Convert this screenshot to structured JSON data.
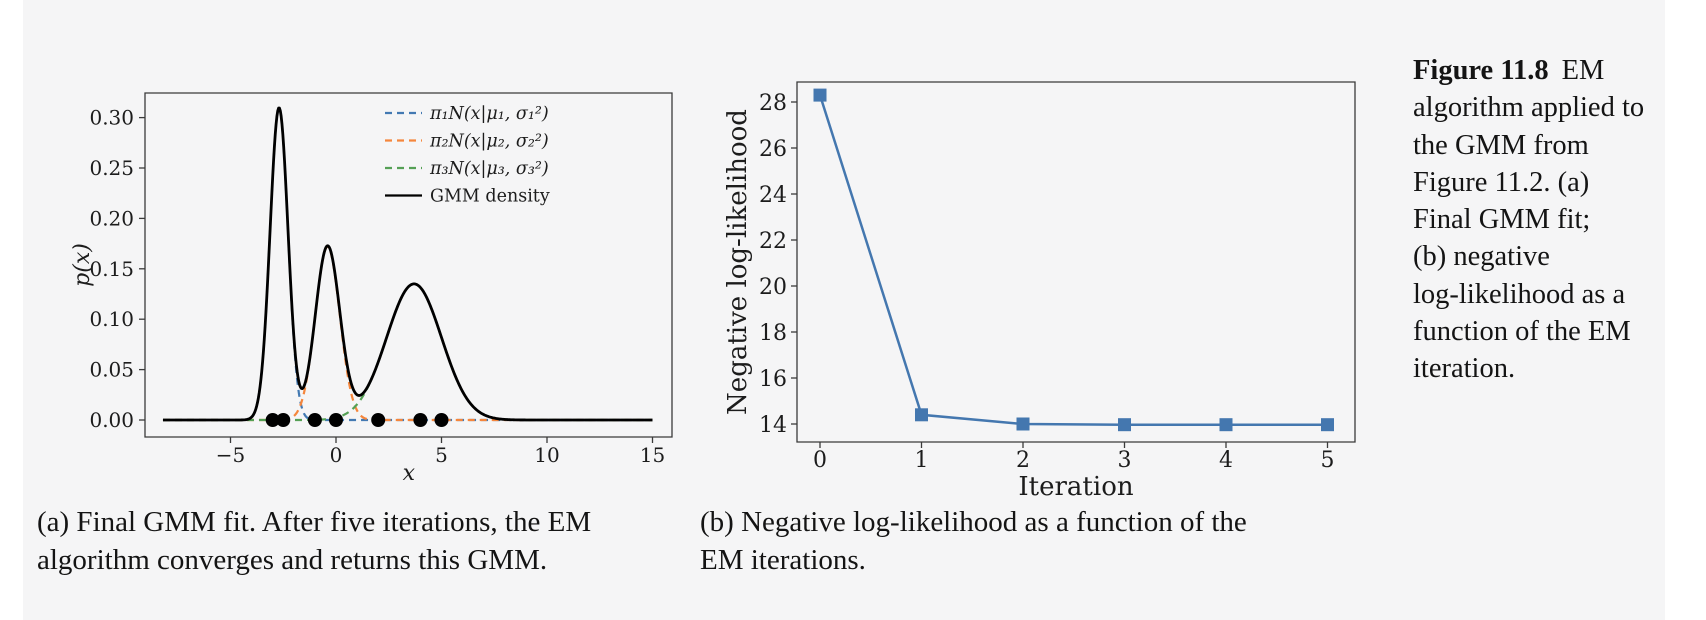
{
  "page": {
    "background": "#f5f5f6"
  },
  "figure_caption": {
    "label": "Figure 11.8",
    "line1_rest": "EM",
    "lines": [
      "algorithm applied to",
      "the GMM from",
      "Figure 11.2. (a)",
      "Final GMM fit;",
      "(b) negative",
      "log-likelihood as a",
      "function of the EM",
      "iteration."
    ]
  },
  "subcaptions": {
    "a": [
      "(a) Final GMM fit. After five iterations, the EM",
      "algorithm converges and returns this GMM."
    ],
    "b": [
      "(b) Negative log-likelihood as a function of the",
      "EM iterations."
    ]
  },
  "chart_data": [
    {
      "id": "gmm-fit",
      "type": "line",
      "title": "",
      "xlabel": "x",
      "ylabel": "p(x)",
      "xlim": [
        -9.05,
        15.93
      ],
      "ylim": [
        -0.017,
        0.3244
      ],
      "xticks": [
        -5,
        0,
        5,
        10,
        15
      ],
      "yticks": [
        0.0,
        0.05,
        0.1,
        0.15,
        0.2,
        0.25,
        0.3
      ],
      "grid": false,
      "legend_position": "upper right",
      "curve_x_range": [
        -8.2,
        15.0
      ],
      "components": [
        {
          "label": "π₁N(x|μ₁, σ₁²)",
          "color": "#4379b2",
          "pi": 0.33,
          "mu": -2.7,
          "sigma": 0.425,
          "style": "dashed"
        },
        {
          "label": "π₂N(x|μ₂, σ₂²)",
          "color": "#f5863c",
          "pi": 0.25,
          "mu": -0.4,
          "sigma": 0.58,
          "style": "dashed"
        },
        {
          "label": "π₃N(x|μ₃, σ₃²)",
          "color": "#55a055",
          "pi": 0.44,
          "mu": 3.7,
          "sigma": 1.3,
          "style": "dashed"
        }
      ],
      "gmm": {
        "label": "GMM density",
        "color": "#000000",
        "style": "solid"
      },
      "data_points_x": [
        -3,
        -2.5,
        -1,
        0,
        2,
        4,
        5
      ],
      "data_point_color": "#000000"
    },
    {
      "id": "nll",
      "type": "line",
      "title": "",
      "xlabel": "Iteration",
      "ylabel": "Negative log-likelihood",
      "x": [
        0,
        1,
        2,
        3,
        4,
        5
      ],
      "y": [
        28.3,
        14.4,
        14.0,
        13.97,
        13.97,
        13.97
      ],
      "xticks": [
        0,
        1,
        2,
        3,
        4,
        5
      ],
      "yticks": [
        14,
        16,
        18,
        20,
        22,
        24,
        26,
        28
      ],
      "xlim": [
        -0.23,
        5.27
      ],
      "ylim": [
        13.22,
        28.87
      ],
      "grid": false,
      "color": "#4477af",
      "marker": "square"
    }
  ]
}
